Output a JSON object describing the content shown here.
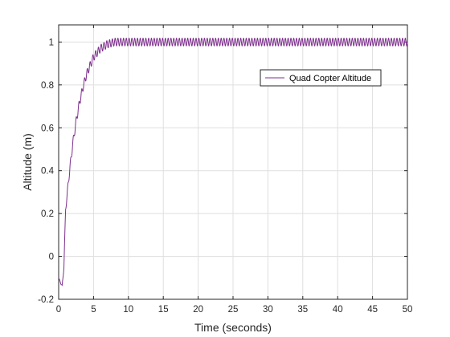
{
  "chart_data": {
    "type": "line",
    "title": "",
    "xlabel": "Time (seconds)",
    "ylabel": "Altitude (m)",
    "xlim": [
      0,
      50
    ],
    "ylim": [
      -0.2,
      1.08
    ],
    "xticks": [
      0,
      5,
      10,
      15,
      20,
      25,
      30,
      35,
      40,
      45,
      50
    ],
    "xtick_labels": [
      "0",
      "5",
      "10",
      "15",
      "20",
      "25",
      "30",
      "35",
      "40",
      "45",
      "50"
    ],
    "yticks": [
      -0.2,
      0,
      0.2,
      0.4,
      0.6,
      0.8,
      1
    ],
    "ytick_labels": [
      "-0.2",
      "0",
      "0.2",
      "0.4",
      "0.6",
      "0.8",
      "1"
    ],
    "grid": true,
    "legend_position": "upper-right",
    "series": [
      {
        "name": "Quad Copter Altitude",
        "color": "#7E2F8E",
        "x": [
          0,
          0.25,
          0.5,
          0.75,
          1,
          1.5,
          2,
          2.5,
          3,
          3.5,
          4,
          4.5,
          5,
          5.5,
          6,
          6.5,
          7,
          7.5,
          8,
          9,
          10,
          12,
          15,
          20,
          25,
          30,
          35,
          40,
          45,
          50
        ],
        "y": [
          -0.1,
          -0.12,
          -0.14,
          -0.05,
          0.22,
          0.38,
          0.52,
          0.63,
          0.72,
          0.79,
          0.85,
          0.89,
          0.93,
          0.95,
          0.97,
          0.98,
          0.99,
          0.995,
          1.0,
          1.0,
          1.0,
          1.0,
          1.0,
          1.0,
          1.0,
          1.0,
          1.0,
          1.0,
          1.0,
          1.0
        ],
        "oscillation": {
          "amplitude": 0.018,
          "period": 0.4
        }
      }
    ]
  }
}
